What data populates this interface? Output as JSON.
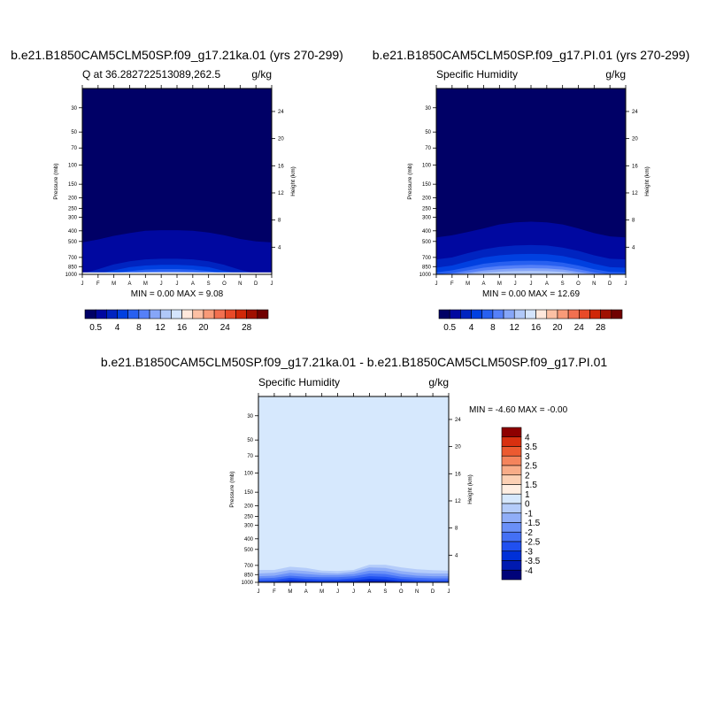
{
  "panels": [
    {
      "title": "b.e21.B1850CAM5CLM50SP.f09_g17.21ka.01 (yrs 270-299)",
      "left_label": "Q at 36.282722513089,262.5",
      "right_label": "g/kg",
      "minmax": "MIN =   0.00 MAX =    9.08"
    },
    {
      "title": "b.e21.B1850CAM5CLM50SP.f09_g17.PI.01 (yrs 270-299)",
      "left_label": "Specific Humidity",
      "right_label": "g/kg",
      "minmax": "MIN =   0.00 MAX =  12.69"
    },
    {
      "title": "b.e21.B1850CAM5CLM50SP.f09_g17.21ka.01 - b.e21.B1850CAM5CLM50SP.f09_g17.PI.01",
      "left_label": "Specific Humidity",
      "right_label": "g/kg",
      "minmax": "MIN =  -4.60 MAX =   -0.00"
    }
  ],
  "chart_data": [
    {
      "type": "heatmap",
      "title": "b.e21.B1850CAM5CLM50SP.f09_g17.21ka.01 (yrs 270-299)",
      "subtitle_left": "Q at 36.282722513089,262.5",
      "units": "g/kg",
      "x_ticks": [
        "J",
        "F",
        "M",
        "A",
        "M",
        "J",
        "J",
        "A",
        "S",
        "O",
        "N",
        "D",
        "J"
      ],
      "y_ticks": [
        "30",
        "50",
        "70",
        "100",
        "150",
        "200",
        "250",
        "300",
        "400",
        "500",
        "700",
        "850",
        "1000"
      ],
      "y_right_ticks": [
        "4",
        "8",
        "12",
        "16",
        "20",
        "24"
      ],
      "ylabel": "Pressure (mb)",
      "ylabel_right": "Height (km)",
      "ylim": [
        1000,
        20
      ],
      "min": 0.0,
      "max": 9.08,
      "palette": [
        "#000066",
        "#0008a0",
        "#0024c0",
        "#0040e0",
        "#2860f0",
        "#5580f8",
        "#86a6f8",
        "#b0c8f8",
        "#d4e4fc",
        "#ffe8dc",
        "#fcc0a4",
        "#f89a78",
        "#f27050",
        "#e84a28",
        "#d02808",
        "#a01000",
        "#700000"
      ],
      "levels": [
        0.5,
        2,
        4,
        6,
        8,
        10,
        12,
        14,
        16,
        18,
        20,
        22,
        24,
        26,
        28,
        30
      ],
      "colorbar_labels": [
        "0.5",
        "4",
        "8",
        "12",
        "16",
        "20",
        "24",
        "28"
      ],
      "bands": [
        {
          "color_index": 1,
          "top_p": [
            510,
            480,
            445,
            420,
            400,
            395,
            395,
            400,
            415,
            440,
            475,
            500,
            510
          ]
        },
        {
          "color_index": 2,
          "top_p": [
            985,
            900,
            810,
            760,
            730,
            720,
            720,
            730,
            760,
            820,
            910,
            985,
            985
          ]
        },
        {
          "color_index": 3,
          "top_p": [
            1000,
            990,
            920,
            860,
            830,
            820,
            820,
            830,
            860,
            930,
            990,
            1000,
            1000
          ]
        },
        {
          "color_index": 4,
          "top_p": [
            1000,
            1000,
            980,
            935,
            905,
            895,
            895,
            905,
            935,
            985,
            1000,
            1000,
            1000
          ]
        },
        {
          "color_index": 5,
          "top_p": [
            1000,
            1000,
            1000,
            975,
            950,
            940,
            940,
            950,
            975,
            1000,
            1000,
            1000,
            1000
          ]
        },
        {
          "color_index": 6,
          "top_p": [
            1000,
            1000,
            1000,
            995,
            980,
            975,
            975,
            980,
            995,
            1000,
            1000,
            1000,
            1000
          ]
        }
      ],
      "surface_band": {
        "color": "#ffffff",
        "from_p": 960
      }
    },
    {
      "type": "heatmap",
      "title": "b.e21.B1850CAM5CLM50SP.f09_g17.PI.01 (yrs 270-299)",
      "subtitle_left": "Specific Humidity",
      "units": "g/kg",
      "x_ticks": [
        "J",
        "F",
        "M",
        "A",
        "M",
        "J",
        "J",
        "A",
        "S",
        "O",
        "N",
        "D",
        "J"
      ],
      "y_ticks": [
        "30",
        "50",
        "70",
        "100",
        "150",
        "200",
        "250",
        "300",
        "400",
        "500",
        "700",
        "850",
        "1000"
      ],
      "y_right_ticks": [
        "4",
        "8",
        "12",
        "16",
        "20",
        "24"
      ],
      "ylabel": "Pressure (mb)",
      "ylabel_right": "Height (km)",
      "ylim": [
        1000,
        20
      ],
      "min": 0.0,
      "max": 12.69,
      "palette": [
        "#000066",
        "#0008a0",
        "#0024c0",
        "#0040e0",
        "#2860f0",
        "#5580f8",
        "#86a6f8",
        "#b0c8f8",
        "#d4e4fc",
        "#ffe8dc",
        "#fcc0a4",
        "#f89a78",
        "#f27050",
        "#e84a28",
        "#d02808",
        "#a01000",
        "#700000"
      ],
      "levels": [
        0.5,
        2,
        4,
        6,
        8,
        10,
        12,
        14,
        16,
        18,
        20,
        22,
        24,
        26,
        28,
        30
      ],
      "colorbar_labels": [
        "0.5",
        "4",
        "8",
        "12",
        "16",
        "20",
        "24",
        "28"
      ],
      "bands": [
        {
          "color_index": 1,
          "top_p": [
            460,
            440,
            410,
            380,
            350,
            335,
            330,
            335,
            350,
            380,
            420,
            450,
            460
          ]
        },
        {
          "color_index": 2,
          "top_p": [
            730,
            700,
            640,
            590,
            560,
            545,
            540,
            545,
            570,
            610,
            670,
            720,
            730
          ]
        },
        {
          "color_index": 3,
          "top_p": [
            870,
            830,
            760,
            700,
            670,
            655,
            650,
            655,
            680,
            730,
            800,
            860,
            870
          ]
        },
        {
          "color_index": 4,
          "top_p": [
            960,
            920,
            860,
            800,
            770,
            755,
            750,
            755,
            780,
            830,
            900,
            950,
            960
          ]
        },
        {
          "color_index": 5,
          "top_p": [
            1000,
            975,
            920,
            870,
            840,
            825,
            820,
            825,
            850,
            900,
            960,
            1000,
            1000
          ]
        },
        {
          "color_index": 6,
          "top_p": [
            1000,
            1000,
            965,
            925,
            900,
            885,
            880,
            885,
            905,
            950,
            995,
            1000,
            1000
          ]
        },
        {
          "color_index": 7,
          "top_p": [
            1000,
            1000,
            990,
            965,
            945,
            935,
            930,
            935,
            950,
            985,
            1000,
            1000,
            1000
          ]
        }
      ],
      "surface_band": {
        "color": "#ffffff",
        "from_p": 990
      }
    },
    {
      "type": "heatmap",
      "title": "b.e21.B1850CAM5CLM50SP.f09_g17.21ka.01 - b.e21.B1850CAM5CLM50SP.f09_g17.PI.01",
      "subtitle_left": "Specific Humidity",
      "units": "g/kg",
      "x_ticks": [
        "J",
        "F",
        "M",
        "A",
        "M",
        "J",
        "J",
        "A",
        "S",
        "O",
        "N",
        "D",
        "J"
      ],
      "y_ticks": [
        "30",
        "50",
        "70",
        "100",
        "150",
        "200",
        "250",
        "300",
        "400",
        "500",
        "700",
        "850",
        "1000"
      ],
      "y_right_ticks": [
        "4",
        "8",
        "12",
        "16",
        "20",
        "24"
      ],
      "ylabel": "Pressure (mb)",
      "ylabel_right": "Height (km)",
      "ylim": [
        1000,
        20
      ],
      "min": -4.6,
      "max": -0.0,
      "palette": [
        "#00037a",
        "#001ab0",
        "#0030d8",
        "#2050f0",
        "#4470f5",
        "#6a90f8",
        "#90aef8",
        "#b4ccfa",
        "#d6e8fd",
        "#ffeee2",
        "#fcd0b4",
        "#f8ac88",
        "#f4845c",
        "#ec5a30",
        "#d83010",
        "#8e0000"
      ],
      "levels": [
        -4,
        -3.5,
        -3,
        -2.5,
        -2,
        -1.5,
        -1,
        0,
        1,
        1.5,
        2,
        2.5,
        3,
        3.5,
        4
      ],
      "colorbar_labels": [
        "4",
        "3.5",
        "3",
        "2.5",
        "2",
        "1.5",
        "1",
        "0",
        "-1",
        "-1.5",
        "-2",
        "-2.5",
        "-3",
        "-3.5",
        "-4"
      ],
      "background_index": 8,
      "bands": [
        {
          "color_index": 7,
          "top_p": [
            770,
            770,
            720,
            740,
            780,
            790,
            770,
            690,
            690,
            730,
            760,
            775,
            780
          ]
        },
        {
          "color_index": 6,
          "top_p": [
            830,
            820,
            770,
            790,
            820,
            830,
            800,
            730,
            740,
            790,
            820,
            830,
            830
          ]
        },
        {
          "color_index": 5,
          "top_p": [
            880,
            870,
            820,
            840,
            860,
            860,
            840,
            780,
            790,
            840,
            870,
            880,
            880
          ]
        },
        {
          "color_index": 4,
          "top_p": [
            920,
            910,
            870,
            890,
            900,
            900,
            880,
            830,
            840,
            890,
            910,
            920,
            920
          ]
        },
        {
          "color_index": 3,
          "top_p": [
            960,
            950,
            910,
            930,
            940,
            940,
            920,
            880,
            890,
            930,
            950,
            960,
            960
          ]
        },
        {
          "color_index": 2,
          "top_p": [
            990,
            985,
            950,
            965,
            975,
            970,
            960,
            930,
            940,
            970,
            985,
            990,
            990
          ]
        },
        {
          "color_index": 1,
          "top_p": [
            1000,
            1000,
            985,
            990,
            995,
            995,
            990,
            970,
            975,
            995,
            1000,
            1000,
            1000
          ]
        }
      ],
      "surface_band": {
        "color": "#ffffff",
        "from_p": 995
      }
    }
  ]
}
